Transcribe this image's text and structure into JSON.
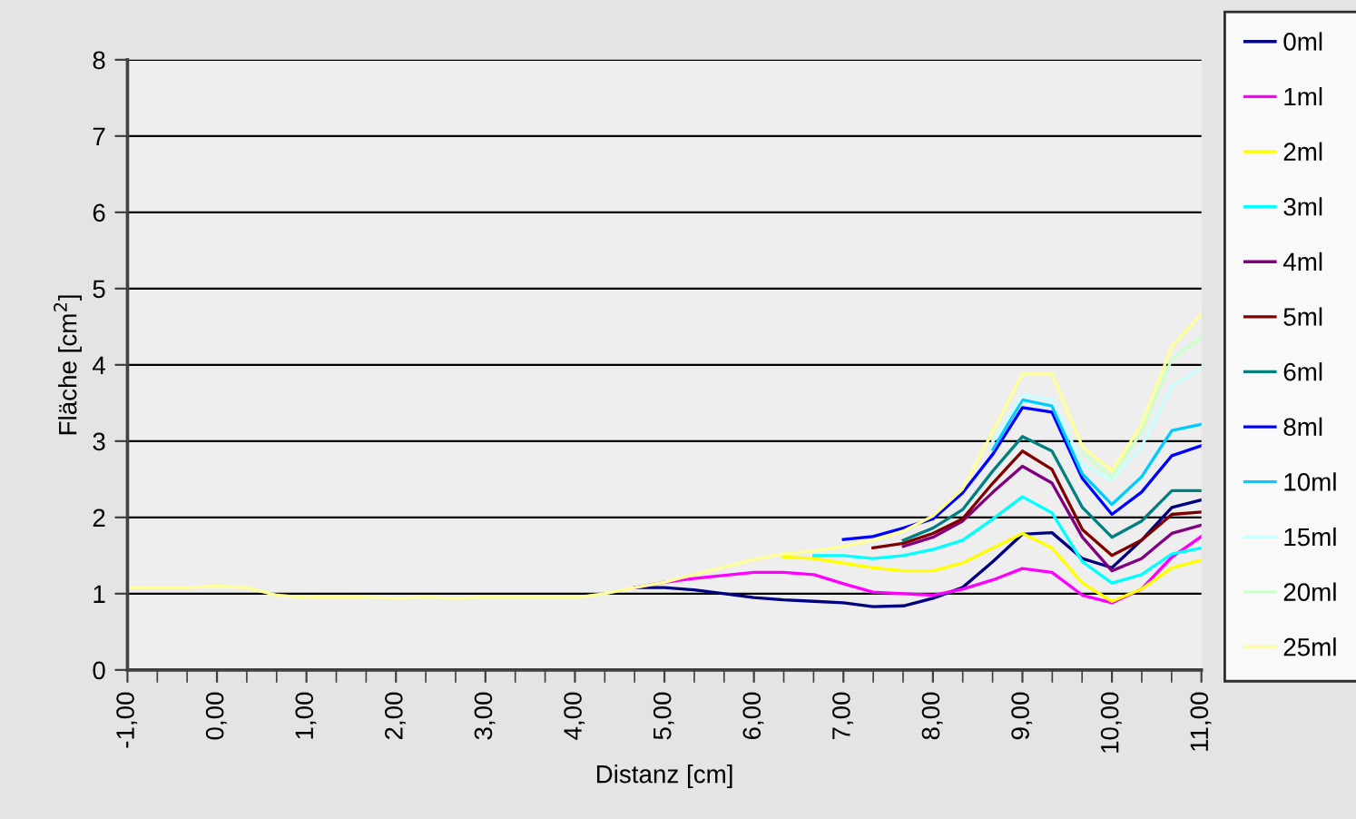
{
  "chart_data": {
    "type": "line",
    "xlabel": "Distanz [cm]",
    "ylabel": "Fläche [cm$^{2}$]",
    "x": [
      -1,
      -0.67,
      -0.33,
      0,
      0.33,
      0.67,
      1,
      1.33,
      1.67,
      2,
      2.33,
      2.67,
      3,
      3.33,
      3.67,
      4,
      4.33,
      4.67,
      5,
      5.33,
      5.67,
      6,
      6.33,
      6.67,
      7,
      7.33,
      7.67,
      8,
      8.33,
      8.67,
      9,
      9.33,
      9.67,
      10,
      10.33,
      10.67,
      11
    ],
    "xlim": [
      -1,
      11
    ],
    "xticks": [
      {
        "value": -1,
        "label": "-1,00"
      },
      {
        "value": 0,
        "label": "0,00"
      },
      {
        "value": 1,
        "label": "1,00"
      },
      {
        "value": 2,
        "label": "2,00"
      },
      {
        "value": 3,
        "label": "3,00"
      },
      {
        "value": 4,
        "label": "4,00"
      },
      {
        "value": 5,
        "label": "5,00"
      },
      {
        "value": 6,
        "label": "6,00"
      },
      {
        "value": 7,
        "label": "7,00"
      },
      {
        "value": 8,
        "label": "8,00"
      },
      {
        "value": 9,
        "label": "9,00"
      },
      {
        "value": 10,
        "label": "10,00"
      },
      {
        "value": 11,
        "label": "11,00"
      }
    ],
    "ylim": [
      0,
      8
    ],
    "yticks": [
      0,
      1,
      2,
      3,
      4,
      5,
      6,
      7,
      8
    ],
    "grid": "y",
    "legend": "right",
    "marker": "none",
    "line_style": "solid",
    "series": [
      {
        "name": "0ml",
        "color": "#000080",
        "values": [
          null,
          null,
          null,
          null,
          null,
          null,
          null,
          null,
          null,
          null,
          null,
          null,
          null,
          null,
          null,
          null,
          null,
          1.08,
          1.08,
          1.05,
          1.0,
          0.95,
          0.92,
          0.9,
          0.88,
          0.83,
          0.84,
          0.94,
          1.08,
          1.42,
          1.78,
          1.8,
          1.46,
          1.34,
          1.7,
          2.13,
          2.23
        ]
      },
      {
        "name": "1ml",
        "color": "#ff00ff",
        "values": [
          null,
          null,
          null,
          null,
          null,
          null,
          null,
          null,
          null,
          null,
          null,
          null,
          null,
          null,
          null,
          null,
          null,
          1.08,
          1.15,
          1.2,
          1.24,
          1.28,
          1.28,
          1.25,
          1.13,
          1.02,
          1.0,
          0.98,
          1.06,
          1.18,
          1.33,
          1.28,
          0.98,
          0.88,
          1.06,
          1.48,
          1.75
        ]
      },
      {
        "name": "2ml",
        "color": "#ffff00",
        "values": [
          null,
          null,
          null,
          null,
          null,
          null,
          null,
          null,
          null,
          null,
          null,
          null,
          null,
          null,
          null,
          null,
          null,
          null,
          null,
          null,
          null,
          null,
          1.48,
          1.46,
          1.4,
          1.34,
          1.3,
          1.3,
          1.4,
          1.6,
          1.79,
          1.6,
          1.14,
          0.9,
          1.06,
          1.34,
          1.44
        ]
      },
      {
        "name": "3ml",
        "color": "#00ffff",
        "values": [
          null,
          null,
          null,
          null,
          null,
          null,
          null,
          null,
          null,
          null,
          null,
          null,
          null,
          null,
          null,
          null,
          null,
          null,
          null,
          null,
          null,
          null,
          null,
          1.5,
          1.5,
          1.46,
          1.5,
          1.58,
          1.7,
          1.98,
          2.27,
          2.06,
          1.42,
          1.14,
          1.25,
          1.52,
          1.6
        ]
      },
      {
        "name": "4ml",
        "color": "#800080",
        "values": [
          null,
          null,
          null,
          null,
          null,
          null,
          null,
          null,
          null,
          null,
          null,
          null,
          null,
          null,
          null,
          null,
          null,
          null,
          null,
          null,
          null,
          null,
          null,
          null,
          null,
          null,
          1.62,
          1.74,
          1.95,
          2.33,
          2.67,
          2.45,
          1.74,
          1.3,
          1.46,
          1.79,
          1.9
        ]
      },
      {
        "name": "5ml",
        "color": "#800000",
        "values": [
          null,
          null,
          null,
          null,
          null,
          null,
          null,
          null,
          null,
          null,
          null,
          null,
          null,
          null,
          null,
          null,
          null,
          null,
          null,
          null,
          null,
          null,
          null,
          null,
          null,
          1.6,
          1.66,
          1.79,
          1.98,
          2.45,
          2.87,
          2.63,
          1.84,
          1.5,
          1.7,
          2.04,
          2.07
        ]
      },
      {
        "name": "6ml",
        "color": "#008080",
        "values": [
          null,
          null,
          null,
          null,
          null,
          null,
          null,
          null,
          null,
          null,
          null,
          null,
          null,
          null,
          null,
          null,
          null,
          null,
          null,
          null,
          null,
          null,
          null,
          null,
          null,
          null,
          1.7,
          1.86,
          2.1,
          2.61,
          3.06,
          2.87,
          2.13,
          1.74,
          1.95,
          2.35,
          2.35
        ]
      },
      {
        "name": "8ml",
        "color": "#0000ff",
        "values": [
          null,
          null,
          null,
          null,
          null,
          null,
          null,
          null,
          null,
          null,
          null,
          null,
          null,
          null,
          null,
          null,
          null,
          null,
          null,
          null,
          null,
          null,
          null,
          null,
          1.71,
          1.75,
          1.86,
          1.98,
          2.32,
          2.83,
          3.44,
          3.38,
          2.51,
          2.04,
          2.33,
          2.81,
          2.94
        ]
      },
      {
        "name": "10ml",
        "color": "#00ccff",
        "values": [
          null,
          null,
          null,
          null,
          null,
          null,
          null,
          null,
          null,
          null,
          null,
          null,
          null,
          null,
          null,
          null,
          null,
          null,
          null,
          null,
          null,
          null,
          null,
          null,
          null,
          null,
          null,
          null,
          null,
          2.89,
          3.54,
          3.46,
          2.57,
          2.17,
          2.53,
          3.14,
          3.22
        ]
      },
      {
        "name": "15ml",
        "color": "#ccffff",
        "values": [
          null,
          null,
          null,
          null,
          null,
          null,
          null,
          null,
          null,
          null,
          null,
          null,
          null,
          null,
          null,
          null,
          null,
          null,
          null,
          null,
          null,
          null,
          null,
          null,
          null,
          null,
          null,
          null,
          null,
          3.0,
          3.6,
          3.55,
          2.7,
          2.49,
          2.93,
          3.72,
          3.96
        ]
      },
      {
        "name": "20ml",
        "color": "#ccffcc",
        "values": [
          null,
          null,
          null,
          null,
          null,
          null,
          null,
          null,
          null,
          null,
          null,
          null,
          null,
          null,
          null,
          null,
          null,
          null,
          null,
          null,
          null,
          null,
          null,
          null,
          null,
          null,
          null,
          null,
          null,
          null,
          null,
          null,
          2.85,
          2.53,
          3.12,
          4.08,
          4.36
        ]
      },
      {
        "name": "25ml",
        "color": "#ffff99",
        "values": [
          1.08,
          1.08,
          1.08,
          1.1,
          1.08,
          0.98,
          0.95,
          0.96,
          0.95,
          0.94,
          0.95,
          0.94,
          0.95,
          0.95,
          0.95,
          0.95,
          1.0,
          1.08,
          1.15,
          1.25,
          1.35,
          1.45,
          1.52,
          1.56,
          1.62,
          1.7,
          1.82,
          2.02,
          2.37,
          3.13,
          3.88,
          3.88,
          2.93,
          2.61,
          3.21,
          4.24,
          4.67
        ]
      }
    ]
  }
}
